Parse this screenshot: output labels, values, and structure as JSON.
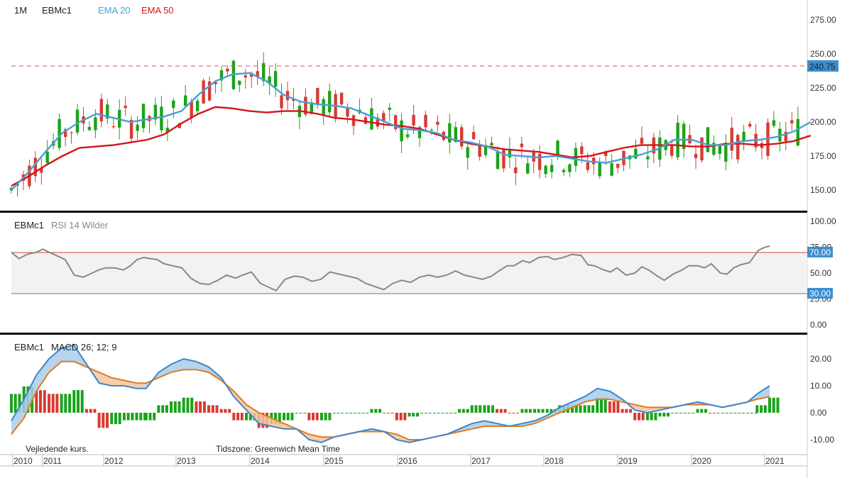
{
  "header": {
    "interval": "1M",
    "symbol": "EBMc1",
    "ema20_label": "EMA 20",
    "ema50_label": "EMA 50"
  },
  "colors": {
    "up": "#1aa31a",
    "down": "#d83a34",
    "ema20": "#4a9fd4",
    "ema50": "#d4151a",
    "rsi": "#888888",
    "macd": "#3d86c6",
    "signal": "#e07b21",
    "badge": "#3b8fd0"
  },
  "rsi_panel": {
    "symbol": "EBMc1",
    "label": "RSI 14 Wilder",
    "upper_badge": "70.00",
    "lower_badge": "30.00"
  },
  "macd_panel": {
    "symbol": "EBMc1",
    "label": "MACD 26; 12; 9"
  },
  "footer": {
    "note": "Vejledende kurs.",
    "timezone": "Tidszone: Greenwich Mean Time"
  },
  "price_badge": "240.75",
  "x_axis": [
    "2010",
    "2011",
    "2012",
    "2013",
    "2014",
    "2015",
    "2016",
    "2017",
    "2018",
    "2019",
    "2020",
    "2021"
  ],
  "chart_data": [
    {
      "type": "candlestick",
      "interval": "1M",
      "symbol": "EBMc1",
      "y_ticks": [
        "150.00",
        "175.00",
        "200.00",
        "225.00",
        "250.00",
        "275.00"
      ],
      "ylim": [
        135,
        288
      ],
      "last_price": 240.75,
      "last_price_line": "dashed",
      "ema20": [
        [
          2010.0,
          150
        ],
        [
          2010.25,
          163
        ],
        [
          2010.5,
          178
        ],
        [
          2010.75,
          192
        ],
        [
          2011.0,
          200
        ],
        [
          2011.25,
          206
        ],
        [
          2011.5,
          203
        ],
        [
          2011.75,
          200
        ],
        [
          2012.0,
          202
        ],
        [
          2012.25,
          204
        ],
        [
          2012.5,
          208
        ],
        [
          2012.75,
          220
        ],
        [
          2013.0,
          230
        ],
        [
          2013.25,
          235
        ],
        [
          2013.5,
          236
        ],
        [
          2013.75,
          230
        ],
        [
          2014.0,
          220
        ],
        [
          2014.25,
          215
        ],
        [
          2014.5,
          213
        ],
        [
          2014.75,
          212
        ],
        [
          2015.0,
          210
        ],
        [
          2015.25,
          205
        ],
        [
          2015.5,
          200
        ],
        [
          2015.75,
          195
        ],
        [
          2016.0,
          194
        ],
        [
          2016.25,
          192
        ],
        [
          2016.5,
          187
        ],
        [
          2016.75,
          185
        ],
        [
          2017.0,
          182
        ],
        [
          2017.25,
          176
        ],
        [
          2017.5,
          175
        ],
        [
          2017.75,
          174
        ],
        [
          2018.0,
          175
        ],
        [
          2018.25,
          173
        ],
        [
          2018.5,
          171
        ],
        [
          2018.75,
          170
        ],
        [
          2019.0,
          173
        ],
        [
          2019.25,
          176
        ],
        [
          2019.5,
          180
        ],
        [
          2019.75,
          187
        ],
        [
          2020.0,
          187
        ],
        [
          2020.25,
          183
        ],
        [
          2020.5,
          183
        ],
        [
          2020.75,
          186
        ],
        [
          2021.0,
          187
        ],
        [
          2021.25,
          189
        ],
        [
          2021.5,
          193
        ],
        [
          2021.75,
          200
        ]
      ],
      "ema50": [
        [
          2010.0,
          153
        ],
        [
          2010.25,
          160
        ],
        [
          2010.5,
          168
        ],
        [
          2010.75,
          175
        ],
        [
          2011.0,
          181
        ],
        [
          2011.25,
          182
        ],
        [
          2011.5,
          183
        ],
        [
          2011.75,
          185
        ],
        [
          2012.0,
          187
        ],
        [
          2012.25,
          191
        ],
        [
          2012.5,
          199
        ],
        [
          2012.75,
          206
        ],
        [
          2013.0,
          211
        ],
        [
          2013.25,
          210
        ],
        [
          2013.5,
          208
        ],
        [
          2013.75,
          207
        ],
        [
          2014.0,
          208
        ],
        [
          2014.25,
          208
        ],
        [
          2014.5,
          206
        ],
        [
          2014.75,
          203
        ],
        [
          2015.0,
          202
        ],
        [
          2015.25,
          200
        ],
        [
          2015.5,
          198
        ],
        [
          2015.75,
          197
        ],
        [
          2016.0,
          195
        ],
        [
          2016.25,
          191
        ],
        [
          2016.5,
          187
        ],
        [
          2016.75,
          184
        ],
        [
          2017.0,
          182
        ],
        [
          2017.25,
          180
        ],
        [
          2017.5,
          179
        ],
        [
          2017.75,
          178
        ],
        [
          2018.0,
          176
        ],
        [
          2018.25,
          174
        ],
        [
          2018.5,
          175
        ],
        [
          2018.75,
          178
        ],
        [
          2019.0,
          181
        ],
        [
          2019.25,
          183
        ],
        [
          2019.5,
          183
        ],
        [
          2019.75,
          183
        ],
        [
          2020.0,
          182
        ],
        [
          2020.25,
          182
        ],
        [
          2020.5,
          184
        ],
        [
          2020.75,
          184
        ],
        [
          2021.0,
          183
        ],
        [
          2021.25,
          184
        ],
        [
          2021.5,
          186
        ],
        [
          2021.75,
          190
        ]
      ]
    },
    {
      "type": "line",
      "name": "RSI 14 Wilder",
      "y_ticks": [
        "0.00",
        "25.00",
        "50.00",
        "75.00",
        "100.00"
      ],
      "ylim": [
        0,
        100
      ],
      "bands": [
        30,
        70
      ],
      "points": [
        [
          2010.0,
          70
        ],
        [
          2010.17,
          64
        ],
        [
          2010.35,
          68
        ],
        [
          2010.55,
          70
        ],
        [
          2010.7,
          73
        ],
        [
          2010.85,
          70
        ],
        [
          2011.0,
          67
        ],
        [
          2011.2,
          63
        ],
        [
          2011.4,
          48
        ],
        [
          2011.6,
          46
        ],
        [
          2011.8,
          50
        ],
        [
          2011.95,
          53
        ],
        [
          2012.1,
          55
        ],
        [
          2012.3,
          55
        ],
        [
          2012.5,
          53
        ],
        [
          2012.65,
          57
        ],
        [
          2012.8,
          63
        ],
        [
          2012.95,
          65
        ],
        [
          2013.1,
          64
        ],
        [
          2013.25,
          63
        ],
        [
          2013.4,
          59
        ],
        [
          2013.6,
          57
        ],
        [
          2013.8,
          55
        ],
        [
          2014.0,
          45
        ],
        [
          2014.2,
          40
        ],
        [
          2014.4,
          39
        ],
        [
          2014.6,
          43
        ],
        [
          2014.8,
          48
        ],
        [
          2015.0,
          45
        ],
        [
          2015.15,
          48
        ],
        [
          2015.35,
          51
        ],
        [
          2015.55,
          40
        ],
        [
          2015.75,
          36
        ],
        [
          2015.9,
          33
        ],
        [
          2016.1,
          44
        ],
        [
          2016.3,
          47
        ],
        [
          2016.5,
          46
        ],
        [
          2016.7,
          42
        ],
        [
          2016.9,
          44
        ],
        [
          2017.1,
          51
        ],
        [
          2017.3,
          49
        ],
        [
          2017.5,
          47
        ],
        [
          2017.7,
          45
        ],
        [
          2017.9,
          40
        ],
        [
          2018.1,
          37
        ],
        [
          2018.3,
          34
        ],
        [
          2018.5,
          40
        ],
        [
          2018.7,
          43
        ],
        [
          2018.9,
          41
        ],
        [
          2019.1,
          46
        ],
        [
          2019.3,
          48
        ],
        [
          2019.5,
          46
        ],
        [
          2019.7,
          48
        ],
        [
          2019.9,
          52
        ],
        [
          2020.1,
          48
        ],
        [
          2020.3,
          46
        ],
        [
          2020.5,
          44
        ],
        [
          2020.7,
          47
        ],
        [
          2020.9,
          53
        ],
        [
          2021.05,
          57
        ],
        [
          2021.2,
          57
        ],
        [
          2021.4,
          62
        ],
        [
          2021.55,
          60
        ],
        [
          2021.75,
          65
        ],
        [
          2021.95,
          66
        ],
        [
          2022.1,
          63
        ],
        [
          2022.3,
          65
        ],
        [
          2022.5,
          68
        ],
        [
          2022.7,
          67
        ],
        [
          2022.85,
          58
        ],
        [
          2023.0,
          57
        ],
        [
          2023.2,
          53
        ],
        [
          2023.35,
          51
        ],
        [
          2023.5,
          55
        ],
        [
          2023.7,
          48
        ],
        [
          2023.9,
          50
        ],
        [
          2024.05,
          56
        ],
        [
          2024.2,
          53
        ],
        [
          2024.4,
          47
        ],
        [
          2024.55,
          43
        ],
        [
          2024.75,
          49
        ],
        [
          2024.95,
          53
        ],
        [
          2025.1,
          57
        ],
        [
          2025.3,
          57
        ],
        [
          2025.45,
          55
        ],
        [
          2025.6,
          59
        ],
        [
          2025.8,
          50
        ],
        [
          2025.95,
          49
        ],
        [
          2026.1,
          55
        ],
        [
          2026.25,
          58
        ],
        [
          2026.45,
          60
        ],
        [
          2026.65,
          72
        ],
        [
          2026.8,
          75
        ],
        [
          2026.9,
          76
        ]
      ]
    },
    {
      "type": "macd",
      "name": "MACD 26; 12; 9",
      "y_ticks": [
        "-10.00",
        "0.00",
        "10.00",
        "20.00"
      ],
      "ylim": [
        -13,
        26
      ],
      "macd": [
        [
          2010.0,
          -3
        ],
        [
          2010.2,
          5
        ],
        [
          2010.4,
          14
        ],
        [
          2010.6,
          20
        ],
        [
          2010.8,
          24
        ],
        [
          2011.0,
          25
        ],
        [
          2011.2,
          18
        ],
        [
          2011.4,
          11
        ],
        [
          2011.6,
          10
        ],
        [
          2011.8,
          10
        ],
        [
          2012.0,
          9
        ],
        [
          2012.15,
          9
        ],
        [
          2012.35,
          15
        ],
        [
          2012.55,
          18
        ],
        [
          2012.75,
          20
        ],
        [
          2012.95,
          19
        ],
        [
          2013.15,
          17
        ],
        [
          2013.35,
          13
        ],
        [
          2013.55,
          6
        ],
        [
          2013.75,
          1
        ],
        [
          2013.95,
          -4
        ],
        [
          2014.15,
          -5
        ],
        [
          2014.35,
          -6
        ],
        [
          2014.55,
          -6
        ],
        [
          2014.75,
          -10
        ],
        [
          2014.95,
          -11
        ],
        [
          2015.15,
          -9
        ],
        [
          2015.35,
          -8
        ],
        [
          2015.55,
          -7
        ],
        [
          2015.75,
          -6
        ],
        [
          2015.95,
          -7
        ],
        [
          2016.15,
          -10
        ],
        [
          2016.35,
          -11
        ],
        [
          2016.55,
          -10
        ],
        [
          2016.75,
          -9
        ],
        [
          2016.95,
          -8
        ],
        [
          2017.15,
          -6
        ],
        [
          2017.35,
          -4
        ],
        [
          2017.55,
          -3
        ],
        [
          2017.75,
          -4
        ],
        [
          2017.95,
          -5
        ],
        [
          2018.15,
          -4
        ],
        [
          2018.35,
          -3
        ],
        [
          2018.55,
          -1
        ],
        [
          2018.75,
          2
        ],
        [
          2018.95,
          4
        ],
        [
          2019.15,
          6
        ],
        [
          2019.35,
          9
        ],
        [
          2019.55,
          8
        ],
        [
          2019.75,
          5
        ],
        [
          2019.95,
          1
        ],
        [
          2020.15,
          0
        ],
        [
          2020.35,
          1
        ],
        [
          2020.55,
          2
        ],
        [
          2020.75,
          3
        ],
        [
          2020.95,
          4
        ],
        [
          2021.15,
          3
        ],
        [
          2021.35,
          2
        ],
        [
          2021.55,
          3
        ],
        [
          2021.75,
          4
        ],
        [
          2021.9,
          7
        ],
        [
          2022.1,
          10
        ]
      ],
      "signal": [
        [
          2010.0,
          -8
        ],
        [
          2010.2,
          -2
        ],
        [
          2010.4,
          8
        ],
        [
          2010.6,
          15
        ],
        [
          2010.8,
          19
        ],
        [
          2011.0,
          19
        ],
        [
          2011.2,
          17
        ],
        [
          2011.4,
          15
        ],
        [
          2011.6,
          13
        ],
        [
          2011.8,
          12
        ],
        [
          2012.0,
          11
        ],
        [
          2012.15,
          11
        ],
        [
          2012.35,
          13
        ],
        [
          2012.55,
          15
        ],
        [
          2012.75,
          16
        ],
        [
          2012.95,
          16
        ],
        [
          2013.15,
          15
        ],
        [
          2013.35,
          12
        ],
        [
          2013.55,
          8
        ],
        [
          2013.75,
          3
        ],
        [
          2013.95,
          0
        ],
        [
          2014.15,
          -2
        ],
        [
          2014.35,
          -4
        ],
        [
          2014.55,
          -6
        ],
        [
          2014.75,
          -8
        ],
        [
          2014.95,
          -9
        ],
        [
          2015.15,
          -9
        ],
        [
          2015.35,
          -8
        ],
        [
          2015.55,
          -7
        ],
        [
          2015.75,
          -7
        ],
        [
          2015.95,
          -7
        ],
        [
          2016.15,
          -8
        ],
        [
          2016.35,
          -10
        ],
        [
          2016.55,
          -10
        ],
        [
          2016.75,
          -9
        ],
        [
          2016.95,
          -8
        ],
        [
          2017.15,
          -7
        ],
        [
          2017.35,
          -6
        ],
        [
          2017.55,
          -5
        ],
        [
          2017.75,
          -5
        ],
        [
          2017.95,
          -5
        ],
        [
          2018.15,
          -5
        ],
        [
          2018.35,
          -4
        ],
        [
          2018.55,
          -2
        ],
        [
          2018.75,
          0
        ],
        [
          2018.95,
          2
        ],
        [
          2019.15,
          4
        ],
        [
          2019.35,
          5
        ],
        [
          2019.55,
          5
        ],
        [
          2019.75,
          4
        ],
        [
          2019.95,
          3
        ],
        [
          2020.15,
          2
        ],
        [
          2020.35,
          2
        ],
        [
          2020.55,
          2
        ],
        [
          2020.75,
          3
        ],
        [
          2020.95,
          3
        ],
        [
          2021.15,
          3
        ],
        [
          2021.35,
          2
        ],
        [
          2021.55,
          3
        ],
        [
          2021.75,
          4
        ],
        [
          2021.9,
          5
        ],
        [
          2022.1,
          6
        ]
      ]
    }
  ]
}
